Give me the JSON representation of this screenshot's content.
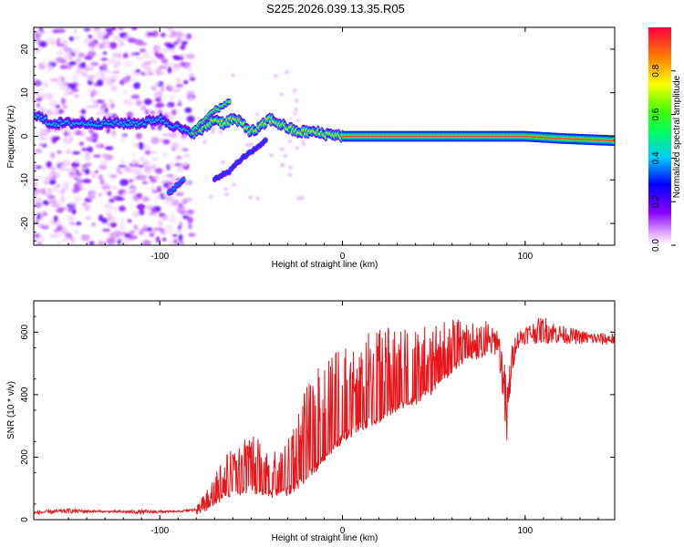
{
  "title": "S225.2026.039.13.35.R05",
  "colors": {
    "snr_line": "#e8161a",
    "ridge_peak": "#e8161a"
  },
  "chart_data": [
    {
      "type": "heatmap",
      "name_hint": "spectrogram",
      "xlabel": "Height of straight line (km)",
      "ylabel": "Frequency (Hz)",
      "xlim": [
        -169,
        149
      ],
      "ylim": [
        -25,
        25
      ],
      "xticks": [
        -100,
        0,
        100
      ],
      "yticks": [
        -20,
        -10,
        0,
        10,
        20
      ],
      "colormap": "rainbow (violet-blue-cyan-green-yellow-red)",
      "ridge": {
        "x": [
          -168,
          -160,
          -150,
          -140,
          -130,
          -120,
          -110,
          -100,
          -95,
          -90,
          -85,
          -80,
          -75,
          -70,
          -65,
          -60,
          -55,
          -50,
          -45,
          -40,
          -35,
          -30,
          -25,
          -20,
          -15,
          -10,
          -5,
          0,
          10,
          20,
          40,
          60,
          80,
          100,
          120,
          149
        ],
        "y": [
          5,
          3,
          3,
          3,
          3,
          3,
          3,
          4,
          3,
          2,
          1,
          1,
          2,
          4,
          3,
          4,
          3,
          1,
          2,
          4,
          3,
          2,
          1,
          1,
          1,
          0.5,
          0.5,
          0,
          0,
          0,
          0,
          0,
          0,
          0,
          -0.5,
          -1
        ]
      },
      "branch_up": {
        "x": [
          -82,
          -75,
          -70,
          -65,
          -62
        ],
        "y": [
          1,
          4,
          6,
          7,
          8
        ]
      },
      "branch_down_left": {
        "x": [
          -95,
          -92,
          -90,
          -87
        ],
        "y": [
          -13,
          -12,
          -11,
          -10
        ]
      },
      "branch_down_mid": {
        "x": [
          -70,
          -62,
          -55,
          -48,
          -42
        ],
        "y": [
          -10,
          -8,
          -5,
          -3,
          -1
        ]
      }
    },
    {
      "type": "line",
      "name_hint": "snr",
      "xlabel": "Height of straight line (km)",
      "ylabel": "SNR (10 * v/v)",
      "xlim": [
        -169,
        149
      ],
      "ylim": [
        0,
        700
      ],
      "xticks": [
        -100,
        0,
        100
      ],
      "yticks": [
        0,
        200,
        400,
        600
      ],
      "x": [
        -169,
        -150,
        -130,
        -110,
        -90,
        -80,
        -75,
        -70,
        -60,
        -50,
        -40,
        -30,
        -20,
        -10,
        0,
        10,
        20,
        30,
        40,
        50,
        60,
        70,
        80,
        85,
        88,
        90,
        92,
        95,
        100,
        110,
        120,
        130,
        140,
        149
      ],
      "y_base": [
        20,
        25,
        25,
        22,
        25,
        30,
        40,
        60,
        90,
        100,
        80,
        90,
        130,
        200,
        260,
        300,
        320,
        360,
        380,
        420,
        480,
        520,
        540,
        560,
        420,
        260,
        450,
        560,
        580,
        590,
        580,
        575,
        570,
        570
      ],
      "y_env": [
        30,
        40,
        30,
        35,
        30,
        40,
        90,
        160,
        230,
        290,
        210,
        270,
        420,
        520,
        550,
        590,
        610,
        620,
        630,
        630,
        640,
        640,
        640,
        650,
        590,
        520,
        580,
        620,
        640,
        680,
        640,
        620,
        610,
        610
      ]
    }
  ],
  "colorbar": {
    "label": "Normalized spectral amplitude",
    "ticks": [
      0.0,
      0.2,
      0.4,
      0.6,
      0.8
    ],
    "tick_labels": [
      "0.0",
      "0.2",
      "0.4",
      "0.6",
      "0.8"
    ]
  }
}
